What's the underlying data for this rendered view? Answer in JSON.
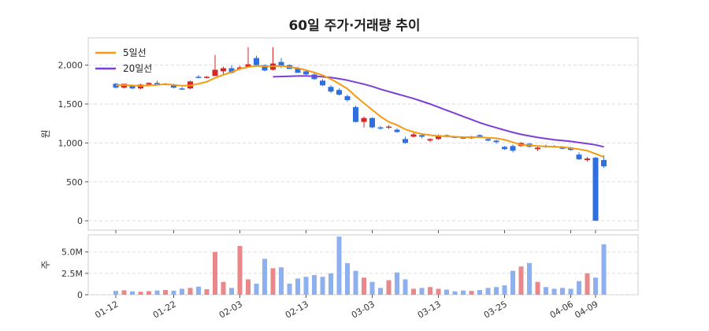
{
  "chart_data": {
    "type": "candlestick",
    "title": "60일 주가·거래량 추이",
    "price_ylabel": "원",
    "volume_ylabel": "주",
    "price_ylim": [
      -120,
      2350
    ],
    "price_yticks": [
      0,
      500,
      1000,
      1500,
      2000
    ],
    "price_ytick_labels": [
      "0",
      "500",
      "1,000",
      "1,500",
      "2,000"
    ],
    "volume_ylim": [
      0,
      7000000
    ],
    "volume_yticks": [
      0,
      2500000,
      5000000
    ],
    "volume_ytick_labels": [
      "0",
      "2.5M",
      "5.0M"
    ],
    "x_tick_indices": [
      0,
      7,
      15,
      23,
      31,
      39,
      47,
      55,
      58
    ],
    "x_tick_labels": [
      "01-12",
      "01-22",
      "02-03",
      "02-13",
      "03-03",
      "03-13",
      "03-25",
      "04-06",
      "04-09"
    ],
    "legend": [
      {
        "name": "5일선",
        "color": "#f39c12"
      },
      {
        "name": "20일선",
        "color": "#7b3fd6"
      }
    ],
    "colors": {
      "up": "#d62728",
      "down": "#2f6fe0",
      "up_volume": "#e8888a",
      "down_volume": "#8fb0ee",
      "grid": "#dddddd"
    },
    "candles": [
      [
        1760,
        1770,
        1700,
        1710
      ],
      [
        1710,
        1760,
        1700,
        1760
      ],
      [
        1740,
        1750,
        1690,
        1700
      ],
      [
        1700,
        1760,
        1690,
        1750
      ],
      [
        1750,
        1780,
        1740,
        1770
      ],
      [
        1770,
        1800,
        1740,
        1750
      ],
      [
        1750,
        1770,
        1740,
        1760
      ],
      [
        1750,
        1760,
        1700,
        1710
      ],
      [
        1700,
        1720,
        1680,
        1690
      ],
      [
        1700,
        1800,
        1690,
        1790
      ],
      [
        1850,
        1870,
        1830,
        1840
      ],
      [
        1840,
        1860,
        1830,
        1850
      ],
      [
        1860,
        2130,
        1860,
        1940
      ],
      [
        1920,
        1980,
        1880,
        1960
      ],
      [
        1960,
        2000,
        1890,
        1900
      ],
      [
        1950,
        1990,
        1940,
        1970
      ],
      [
        1980,
        2230,
        1970,
        2010
      ],
      [
        2090,
        2120,
        1990,
        2000
      ],
      [
        2000,
        2010,
        1920,
        1930
      ],
      [
        1940,
        2230,
        1930,
        2020
      ],
      [
        2040,
        2090,
        1960,
        1990
      ],
      [
        2000,
        2010,
        1950,
        1950
      ],
      [
        1960,
        1980,
        1900,
        1900
      ],
      [
        1920,
        1940,
        1870,
        1880
      ],
      [
        1880,
        1900,
        1810,
        1820
      ],
      [
        1800,
        1820,
        1730,
        1740
      ],
      [
        1720,
        1740,
        1640,
        1660
      ],
      [
        1680,
        1700,
        1610,
        1620
      ],
      [
        1600,
        1620,
        1530,
        1550
      ],
      [
        1460,
        1480,
        1260,
        1270
      ],
      [
        1270,
        1340,
        1200,
        1320
      ],
      [
        1320,
        1330,
        1190,
        1200
      ],
      [
        1200,
        1220,
        1170,
        1190
      ],
      [
        1200,
        1230,
        1180,
        1210
      ],
      [
        1170,
        1190,
        1130,
        1140
      ],
      [
        1050,
        1080,
        990,
        1000
      ],
      [
        1080,
        1130,
        1070,
        1110
      ],
      [
        1100,
        1120,
        1060,
        1080
      ],
      [
        1030,
        1060,
        1010,
        1050
      ],
      [
        1050,
        1110,
        1040,
        1100
      ],
      [
        1100,
        1110,
        1070,
        1080
      ],
      [
        1080,
        1090,
        1060,
        1070
      ],
      [
        1070,
        1080,
        1050,
        1060
      ],
      [
        1060,
        1090,
        1050,
        1080
      ],
      [
        1100,
        1110,
        1060,
        1070
      ],
      [
        1050,
        1060,
        1020,
        1030
      ],
      [
        1030,
        1040,
        990,
        1010
      ],
      [
        950,
        960,
        910,
        920
      ],
      [
        960,
        980,
        880,
        900
      ],
      [
        960,
        1010,
        950,
        1000
      ],
      [
        990,
        1000,
        940,
        950
      ],
      [
        920,
        950,
        900,
        940
      ],
      [
        960,
        980,
        940,
        950
      ],
      [
        960,
        970,
        940,
        950
      ],
      [
        940,
        960,
        920,
        930
      ],
      [
        930,
        950,
        900,
        910
      ],
      [
        850,
        880,
        780,
        790
      ],
      [
        780,
        820,
        760,
        800
      ],
      [
        810,
        820,
        0,
        0
      ],
      [
        780,
        840,
        680,
        700
      ]
    ],
    "ma5": [
      1740,
      1745,
      1738,
      1735,
      1738,
      1745,
      1755,
      1745,
      1735,
      1738,
      1760,
      1785,
      1835,
      1875,
      1910,
      1950,
      1975,
      1990,
      1985,
      1985,
      1990,
      1975,
      1960,
      1935,
      1905,
      1870,
      1820,
      1760,
      1695,
      1600,
      1510,
      1425,
      1340,
      1270,
      1230,
      1175,
      1140,
      1115,
      1100,
      1090,
      1085,
      1080,
      1075,
      1075,
      1075,
      1065,
      1060,
      1040,
      1010,
      975,
      970,
      960,
      955,
      950,
      945,
      935,
      920,
      900,
      860,
      820
    ],
    "ma20": [
      null,
      null,
      null,
      null,
      null,
      null,
      null,
      null,
      null,
      null,
      null,
      null,
      null,
      null,
      null,
      null,
      null,
      null,
      null,
      1850,
      1853,
      1856,
      1860,
      1860,
      1857,
      1850,
      1840,
      1825,
      1805,
      1780,
      1755,
      1725,
      1690,
      1660,
      1630,
      1600,
      1570,
      1535,
      1500,
      1460,
      1420,
      1380,
      1340,
      1300,
      1260,
      1225,
      1195,
      1165,
      1135,
      1110,
      1090,
      1070,
      1055,
      1040,
      1030,
      1020,
      1005,
      990,
      975,
      950
    ],
    "volumes": [
      450000,
      520000,
      400000,
      350000,
      420000,
      500000,
      550000,
      480000,
      700000,
      800000,
      950000,
      650000,
      5000000,
      1500000,
      800000,
      5700000,
      1800000,
      1300000,
      4200000,
      3100000,
      3200000,
      1300000,
      1900000,
      2100000,
      2300000,
      2100000,
      2500000,
      6800000,
      3700000,
      2800000,
      2000000,
      1500000,
      800000,
      1700000,
      2600000,
      1800000,
      700000,
      800000,
      900000,
      700000,
      600000,
      400000,
      500000,
      450000,
      550000,
      800000,
      900000,
      1100000,
      2800000,
      3300000,
      3700000,
      1500000,
      900000,
      700000,
      800000,
      700000,
      1600000,
      2500000,
      2000000,
      5900000
    ]
  }
}
